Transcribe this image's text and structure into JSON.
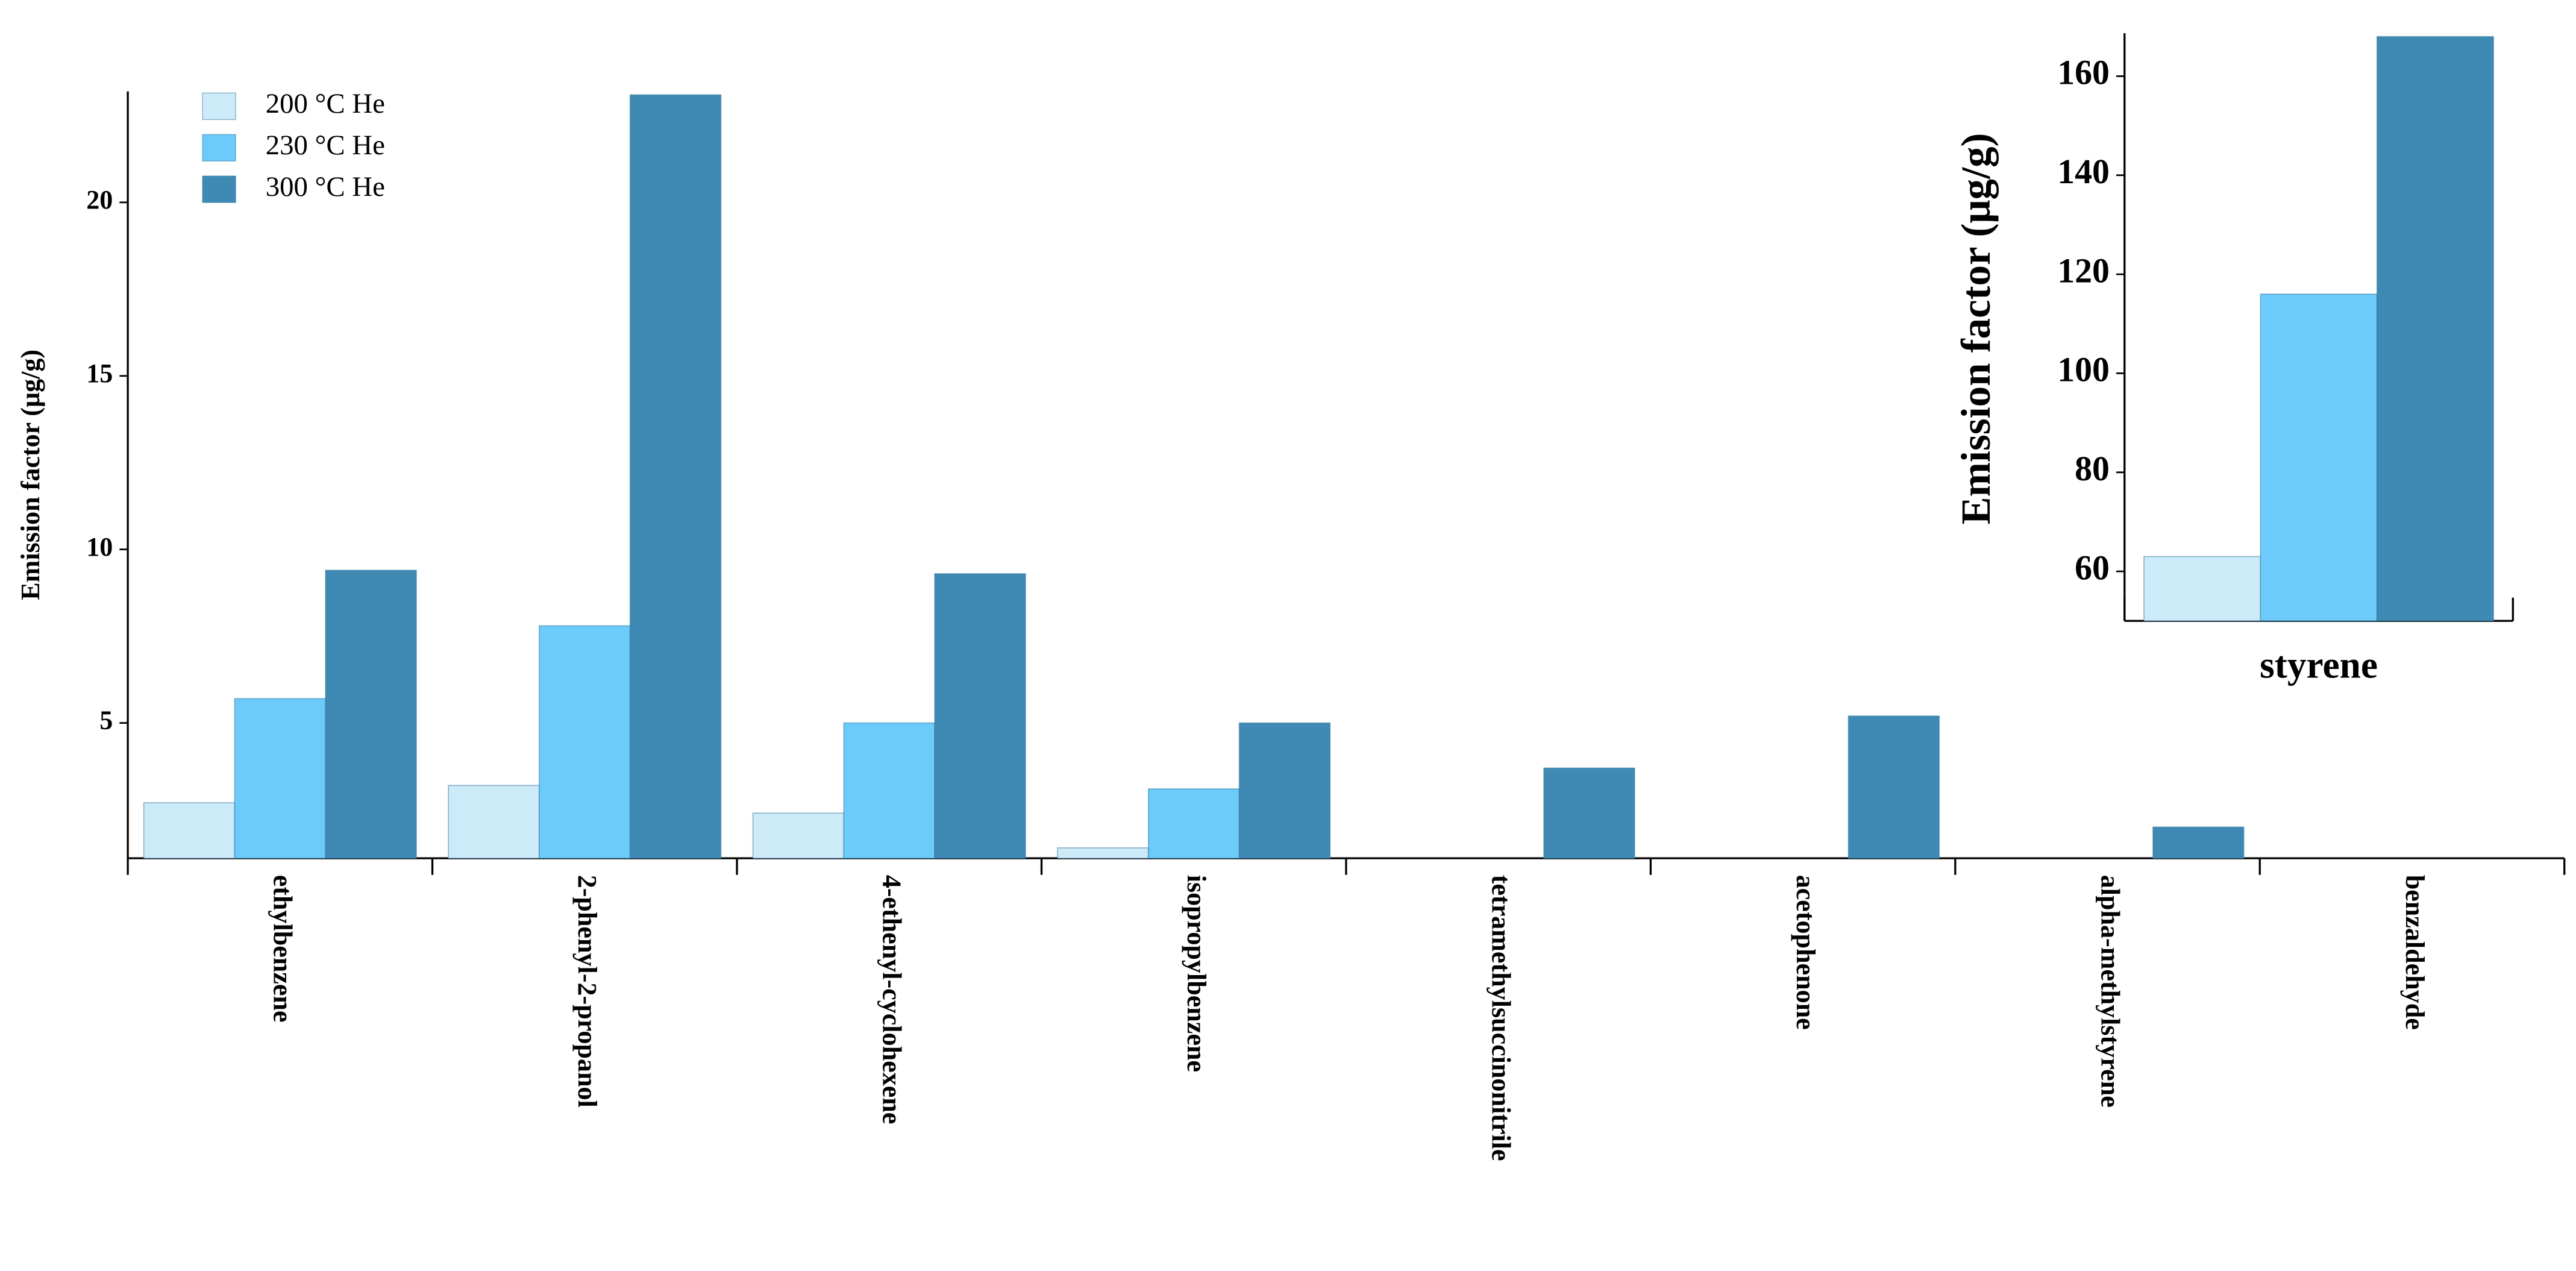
{
  "chart_data": [
    {
      "type": "bar",
      "ylabel": "Emission factor (μg/g)",
      "categories": [
        "ethylbenzene",
        "2-phenyl-2-propanol",
        "4-ethenyl-cyclohexene",
        "isopropylbenzene",
        "tetramethylsuccinonitrile",
        "acetophenone",
        "alpha-methylstyrene",
        "benzaldehyde"
      ],
      "series": [
        {
          "name": "200 °C He",
          "color": "#cdeaf9",
          "values": [
            2.7,
            3.2,
            2.4,
            1.4,
            null,
            null,
            null,
            null
          ]
        },
        {
          "name": "230 °C He",
          "color": "#6ccbfb",
          "values": [
            5.7,
            7.8,
            5.0,
            3.1,
            null,
            null,
            null,
            null
          ]
        },
        {
          "name": "300 °C He",
          "color": "#3f8ab4",
          "values": [
            9.4,
            23.1,
            9.3,
            5.0,
            3.7,
            5.2,
            2.0,
            null
          ]
        }
      ],
      "ylim": [
        1.1,
        23.2
      ],
      "yticks": [
        5,
        10,
        15,
        20
      ],
      "legend": "upper left"
    },
    {
      "type": "bar",
      "ylabel": "Emission factor (μg/g)",
      "categories": [
        "styrene"
      ],
      "series": [
        {
          "color": "#cdeaf9",
          "values": [
            63
          ]
        },
        {
          "color": "#6ccbfb",
          "values": [
            116
          ]
        },
        {
          "color": "#3f8ab4",
          "values": [
            168
          ]
        }
      ],
      "ylim": [
        50,
        168
      ],
      "yticks": [
        60,
        80,
        100,
        120,
        140,
        160
      ]
    }
  ]
}
